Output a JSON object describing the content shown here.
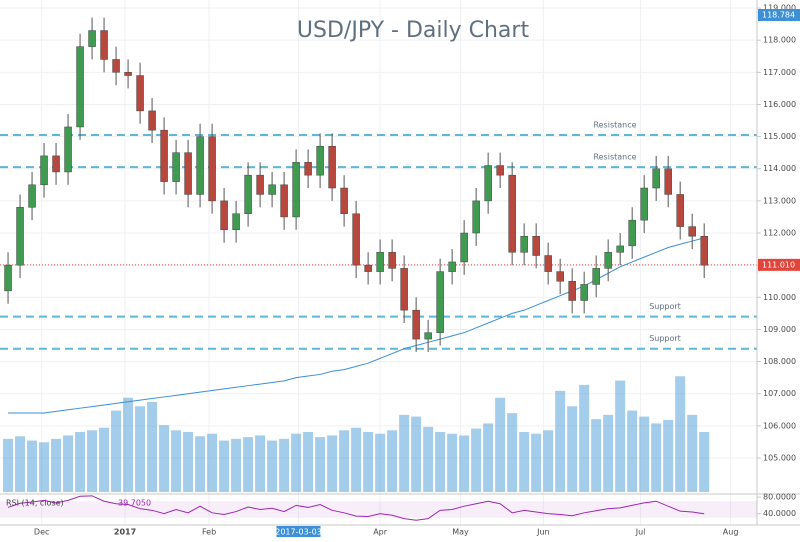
{
  "chart_data": {
    "type": "candlestick",
    "title": "USD/JPY - Daily Chart",
    "x": [
      0,
      1,
      2,
      3,
      4,
      5,
      6,
      7,
      8,
      9,
      10,
      11,
      12,
      13,
      14,
      15,
      16,
      17,
      18,
      19,
      20,
      21,
      22,
      23,
      24,
      25,
      26,
      27,
      28,
      29,
      30,
      31,
      32,
      33,
      34,
      35,
      36,
      37,
      38,
      39,
      40,
      41,
      42,
      43,
      44,
      45,
      46,
      47,
      48,
      49,
      50,
      51,
      52,
      53,
      54,
      55,
      56,
      57,
      58
    ],
    "open": [
      110.2,
      111.0,
      112.8,
      113.5,
      114.4,
      113.9,
      115.3,
      117.8,
      118.3,
      117.4,
      117.0,
      116.9,
      115.8,
      115.2,
      113.6,
      114.5,
      113.2,
      115.0,
      113.0,
      112.1,
      112.6,
      113.8,
      113.2,
      113.5,
      112.5,
      114.2,
      113.8,
      114.7,
      113.4,
      112.6,
      111.0,
      110.8,
      111.4,
      110.9,
      109.6,
      108.7,
      108.9,
      110.8,
      111.1,
      112.0,
      113.0,
      114.1,
      113.8,
      111.4,
      111.9,
      111.3,
      110.8,
      110.5,
      109.9,
      110.4,
      110.9,
      111.4,
      111.6,
      112.4,
      113.4,
      114.0,
      113.2,
      112.2,
      111.9
    ],
    "high": [
      111.4,
      113.2,
      113.9,
      114.8,
      114.8,
      115.7,
      118.2,
      118.7,
      118.7,
      117.8,
      117.4,
      117.3,
      116.2,
      115.6,
      114.9,
      114.9,
      115.4,
      115.4,
      113.4,
      113.0,
      114.2,
      114.2,
      113.9,
      113.9,
      114.6,
      114.6,
      115.1,
      115.1,
      113.8,
      113.0,
      111.4,
      111.8,
      111.8,
      111.3,
      110.0,
      109.3,
      111.2,
      111.5,
      112.4,
      113.4,
      114.5,
      114.5,
      114.2,
      112.3,
      112.3,
      111.7,
      111.2,
      110.9,
      110.8,
      111.3,
      111.8,
      112.0,
      112.8,
      113.8,
      114.4,
      114.4,
      113.6,
      112.6,
      112.3
    ],
    "low": [
      109.8,
      110.6,
      112.4,
      113.1,
      113.5,
      113.5,
      114.9,
      117.4,
      117.0,
      116.6,
      116.5,
      115.4,
      114.8,
      113.2,
      113.2,
      112.8,
      112.8,
      112.6,
      111.7,
      111.7,
      112.2,
      112.8,
      112.8,
      112.1,
      112.1,
      113.4,
      113.4,
      113.0,
      112.2,
      110.6,
      110.4,
      110.4,
      110.5,
      109.2,
      108.3,
      108.3,
      108.5,
      110.4,
      110.7,
      111.6,
      112.6,
      113.4,
      111.0,
      111.0,
      110.9,
      110.4,
      110.1,
      109.5,
      109.5,
      110.0,
      110.5,
      111.0,
      111.2,
      112.0,
      113.0,
      112.8,
      111.8,
      111.5,
      110.6
    ],
    "close": [
      111.0,
      112.8,
      113.5,
      114.4,
      113.9,
      115.3,
      117.8,
      118.3,
      117.4,
      117.0,
      116.9,
      115.8,
      115.2,
      113.6,
      114.5,
      113.2,
      115.0,
      113.0,
      112.1,
      112.6,
      113.8,
      113.2,
      113.5,
      112.5,
      114.2,
      113.8,
      114.7,
      113.4,
      112.6,
      111.0,
      110.8,
      111.4,
      110.9,
      109.6,
      108.7,
      108.9,
      110.8,
      111.1,
      112.0,
      113.0,
      114.1,
      113.8,
      111.4,
      111.9,
      111.3,
      110.8,
      110.5,
      109.9,
      110.4,
      110.9,
      111.4,
      111.6,
      112.4,
      113.4,
      114.0,
      113.2,
      112.2,
      111.9,
      111.0
    ],
    "up_color": "#3f9b4f",
    "down_color": "#b8473d",
    "ma": {
      "color": "#3d8fd6",
      "values": [
        106.4,
        106.4,
        106.4,
        106.4,
        106.45,
        106.5,
        106.55,
        106.6,
        106.65,
        106.7,
        106.75,
        106.8,
        106.85,
        106.9,
        106.95,
        107.0,
        107.05,
        107.1,
        107.15,
        107.2,
        107.25,
        107.3,
        107.35,
        107.4,
        107.5,
        107.55,
        107.6,
        107.7,
        107.75,
        107.85,
        107.95,
        108.1,
        108.25,
        108.4,
        108.5,
        108.6,
        108.7,
        108.8,
        108.9,
        109.05,
        109.2,
        109.35,
        109.5,
        109.6,
        109.75,
        109.9,
        110.05,
        110.2,
        110.35,
        110.55,
        110.75,
        110.95,
        111.1,
        111.25,
        111.4,
        111.55,
        111.65,
        111.75,
        111.85
      ]
    },
    "volume": {
      "color": "#5aa3db",
      "vlim": [
        0,
        140
      ],
      "values": [
        62,
        65,
        60,
        58,
        62,
        66,
        70,
        72,
        75,
        95,
        110,
        100,
        105,
        78,
        72,
        70,
        65,
        68,
        60,
        62,
        64,
        66,
        60,
        62,
        68,
        70,
        64,
        66,
        72,
        75,
        70,
        68,
        72,
        90,
        88,
        76,
        70,
        68,
        66,
        74,
        80,
        110,
        92,
        70,
        68,
        72,
        118,
        100,
        125,
        85,
        90,
        130,
        95,
        88,
        80,
        84,
        135,
        90,
        70
      ]
    },
    "levels": [
      {
        "label": "Resistance",
        "value": 115.05
      },
      {
        "label": "Resistance",
        "value": 114.05
      },
      {
        "label": "Support",
        "value": 109.4
      },
      {
        "label": "Support",
        "value": 108.4
      }
    ],
    "level_color": "#5bb8d6",
    "last_price": {
      "value": 111.01,
      "label": "111.010"
    },
    "high_marker": {
      "value": 118.784,
      "label": "118.784"
    },
    "xlim": [
      -0.67,
      62.4
    ],
    "xticks": [
      {
        "value": 2.8,
        "label": "Dec"
      },
      {
        "value": 9.75,
        "label": "2017",
        "bold": true
      },
      {
        "value": 16.75,
        "label": "Feb"
      },
      {
        "value": 24.2,
        "label": "2017-03-03",
        "highlight": true
      },
      {
        "value": 31,
        "label": "Apr"
      },
      {
        "value": 37.7,
        "label": "May"
      },
      {
        "value": 44.6,
        "label": "Jun"
      },
      {
        "value": 52.7,
        "label": "Jul"
      },
      {
        "value": 60.2,
        "label": "Aug"
      }
    ],
    "ylim": [
      103.88,
      119.25
    ],
    "yticks": [
      {
        "value": 105,
        "label": "105.000"
      },
      {
        "value": 106,
        "label": "106.000"
      },
      {
        "value": 107,
        "label": "107.000"
      },
      {
        "value": 108,
        "label": "108.000"
      },
      {
        "value": 109,
        "label": "109.000"
      },
      {
        "value": 110,
        "label": "110.000"
      },
      {
        "value": 111,
        "label": "111.000"
      },
      {
        "value": 112,
        "label": "112.000"
      },
      {
        "value": 113,
        "label": "113.000"
      },
      {
        "value": 114,
        "label": "114.000"
      },
      {
        "value": 115,
        "label": "115.000"
      },
      {
        "value": 116,
        "label": "116.000"
      },
      {
        "value": 117,
        "label": "117.000"
      },
      {
        "value": 118,
        "label": "118.000"
      },
      {
        "value": 119,
        "label": "119.000"
      }
    ],
    "grid": true,
    "rsi": {
      "title": "RSI (14, close)",
      "color": "#9c27b0",
      "value_label": "39.7050",
      "ylim": [
        15,
        85
      ],
      "band": [
        30,
        70
      ],
      "yticks": [
        {
          "value": 80,
          "label": "80.0000"
        },
        {
          "value": 40,
          "label": "40.0000"
        }
      ],
      "values": [
        55,
        65,
        68,
        72,
        66,
        72,
        82,
        83,
        70,
        64,
        62,
        52,
        48,
        40,
        50,
        42,
        58,
        42,
        38,
        45,
        56,
        50,
        53,
        45,
        60,
        55,
        62,
        48,
        42,
        34,
        33,
        40,
        36,
        28,
        24,
        28,
        48,
        50,
        58,
        64,
        70,
        64,
        42,
        48,
        44,
        40,
        38,
        35,
        42,
        47,
        52,
        54,
        60,
        66,
        70,
        58,
        46,
        44,
        39.705
      ]
    }
  }
}
